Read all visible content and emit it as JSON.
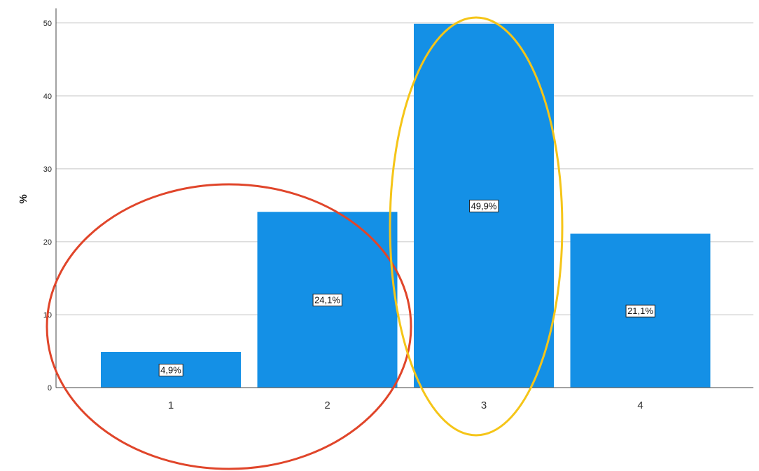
{
  "chart_data": {
    "type": "bar",
    "categories": [
      "1",
      "2",
      "3",
      "4"
    ],
    "values": [
      4.9,
      24.1,
      49.9,
      21.1
    ],
    "data_labels": [
      "4,9%",
      "24,1%",
      "49,9%",
      "21,1%"
    ],
    "title": "",
    "xlabel": "",
    "ylabel": "%",
    "ylim": [
      0,
      52
    ],
    "yticks": [
      0,
      10,
      20,
      30,
      40,
      50
    ],
    "grid": true,
    "legend": "none",
    "bar_color": "#1490E6",
    "annotations": [
      {
        "shape": "ellipse",
        "color": "#E0452A",
        "covers_categories": [
          "1",
          "2"
        ]
      },
      {
        "shape": "ellipse",
        "color": "#F5C518",
        "covers_categories": [
          "3"
        ]
      }
    ]
  }
}
